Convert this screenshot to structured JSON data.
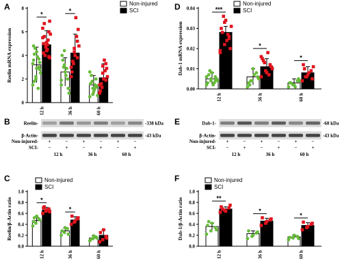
{
  "panel_letters": {
    "a": "A",
    "b": "B",
    "c": "C",
    "d": "D",
    "e": "E",
    "f": "F"
  },
  "legend": {
    "non_injured": "Non-injured",
    "sci": "SCI"
  },
  "colors": {
    "non_injured_fill": "#ffffff",
    "sci_fill": "#000000",
    "non_injured_point": "#66bb3a",
    "sci_point": "#e0141e",
    "blot_background": "#dcdcdc",
    "blot_band": "#333333"
  },
  "blots": {
    "b": {
      "rows": [
        {
          "label": "Reelin-",
          "kda": "-338 kDa",
          "band_intensity": [
            0.35,
            0.6,
            0.4,
            0.55,
            0.35,
            0.5
          ]
        },
        {
          "label": "β-Actin-",
          "kda": "-43 kDa",
          "band_intensity": [
            0.9,
            0.9,
            0.9,
            0.9,
            0.9,
            0.9
          ]
        }
      ],
      "ni_label": "Non-injured-",
      "sci_label": "SCI-",
      "ni_signs": [
        "+",
        "−",
        "+",
        "−",
        "+",
        "−"
      ],
      "sci_signs": [
        "−",
        "+",
        "−",
        "+",
        "−",
        "+"
      ],
      "times": [
        "12 h",
        "36 h",
        "60 h"
      ]
    },
    "e": {
      "rows": [
        {
          "label": "Dab-1-",
          "kda": "-60 kDa",
          "band_intensity": [
            0.55,
            0.8,
            0.55,
            0.75,
            0.5,
            0.7
          ]
        },
        {
          "label": "β-Actin-",
          "kda": "-43 kDa",
          "band_intensity": [
            0.9,
            0.9,
            0.9,
            0.9,
            0.9,
            0.9
          ]
        }
      ],
      "ni_label": "Non-injured-",
      "sci_label": "SCI-",
      "ni_signs": [
        "+",
        "−",
        "+",
        "−",
        "+",
        "−"
      ],
      "sci_signs": [
        "−",
        "+",
        "−",
        "+",
        "−",
        "+"
      ],
      "times": [
        "12 h",
        "36 h",
        "60 h"
      ]
    }
  },
  "chart_data": [
    {
      "panel": "A",
      "type": "bar",
      "ylabel": "Reelin mRNA expression",
      "categories": [
        "12 h",
        "36 h",
        "60 h"
      ],
      "ylim": [
        0,
        8
      ],
      "yticks": [
        0,
        2,
        4,
        6,
        8
      ],
      "series": [
        {
          "name": "Non-injured",
          "values": [
            3.2,
            2.6,
            1.5
          ],
          "errors": [
            1.5,
            1.2,
            0.8
          ]
        },
        {
          "name": "SCI",
          "values": [
            4.9,
            4.2,
            2.1
          ],
          "errors": [
            1.2,
            1.6,
            1.2
          ]
        }
      ],
      "points": [
        [
          [
            1.5,
            2.2,
            3.0,
            3.6,
            4.3,
            2.8,
            1.8,
            3.9,
            2.5,
            4.6,
            1.2,
            3.3,
            2.0,
            3.7,
            4.8,
            2.9,
            3.4,
            4.1
          ],
          [
            5.5,
            4.8,
            6.0,
            4.2,
            5.1,
            3.8,
            6.7,
            4.5,
            5.8,
            4.0,
            5.3,
            6.3,
            4.7,
            3.9,
            5.0,
            4.4,
            6.9,
            5.6,
            4.9
          ]
        ],
        [
          [
            1.5,
            3.2,
            2.0,
            4.0,
            2.6,
            1.2,
            3.6,
            2.3,
            0.8,
            3.0,
            2.9,
            1.9,
            4.4
          ],
          [
            3.0,
            4.6,
            5.2,
            2.6,
            4.0,
            6.2,
            3.5,
            7.2,
            4.8,
            3.3,
            5.6,
            2.2,
            4.3,
            3.8
          ]
        ],
        [
          [
            0.5,
            1.2,
            2.0,
            1.6,
            0.9,
            1.4,
            2.3,
            1.1,
            0.6,
            1.8,
            1.5,
            2.6,
            0.7,
            1.3
          ],
          [
            1.5,
            2.5,
            3.3,
            1.0,
            2.0,
            2.9,
            1.6,
            3.6,
            2.2,
            1.3,
            2.7,
            0.8,
            3.1,
            1.9
          ]
        ]
      ],
      "significance": [
        "*",
        "*",
        ""
      ]
    },
    {
      "panel": "C",
      "type": "bar",
      "ylabel": "Reelin/β-Actin ratio",
      "categories": [
        "12 h",
        "36 h",
        "60 h"
      ],
      "ylim": [
        0,
        1.0
      ],
      "yticks": [
        0.0,
        0.2,
        0.4,
        0.6,
        0.8,
        1.0
      ],
      "series": [
        {
          "name": "Non-injured",
          "values": [
            0.47,
            0.28,
            0.15
          ],
          "errors": [
            0.06,
            0.05,
            0.04
          ]
        },
        {
          "name": "SCI",
          "values": [
            0.66,
            0.48,
            0.2
          ],
          "errors": [
            0.05,
            0.06,
            0.1
          ]
        }
      ],
      "points": [
        [
          [
            0.37,
            0.42,
            0.5,
            0.45,
            0.55,
            0.48,
            0.52
          ],
          [
            0.6,
            0.64,
            0.68,
            0.7,
            0.66,
            0.63,
            0.72
          ]
        ],
        [
          [
            0.2,
            0.25,
            0.32,
            0.28,
            0.34,
            0.22
          ],
          [
            0.4,
            0.44,
            0.5,
            0.55,
            0.46,
            0.52
          ]
        ],
        [
          [
            0.1,
            0.14,
            0.17,
            0.12,
            0.19,
            0.15
          ],
          [
            0.08,
            0.12,
            0.18,
            0.25,
            0.3,
            0.15
          ]
        ]
      ],
      "significance": [
        "*",
        "*",
        ""
      ]
    },
    {
      "panel": "D",
      "type": "bar",
      "ylabel": "Dab-1 mRNA expression",
      "categories": [
        "12 h",
        "36 h",
        "60 h"
      ],
      "ylim": [
        0,
        0.04
      ],
      "yticks": [
        0.0,
        0.01,
        0.02,
        0.03,
        0.04
      ],
      "series": [
        {
          "name": "Non-injured",
          "values": [
            0.005,
            0.006,
            0.003
          ],
          "errors": [
            0.003,
            0.004,
            0.002
          ]
        },
        {
          "name": "SCI",
          "values": [
            0.028,
            0.011,
            0.008
          ],
          "errors": [
            0.003,
            0.004,
            0.003
          ]
        }
      ],
      "points": [
        [
          [
            0.002,
            0.004,
            0.006,
            0.003,
            0.008,
            0.005,
            0.007,
            0.002,
            0.004,
            0.009,
            0.003,
            0.006,
            0.005,
            0.004
          ],
          [
            0.018,
            0.022,
            0.026,
            0.03,
            0.034,
            0.02,
            0.028,
            0.024,
            0.031,
            0.036,
            0.027,
            0.019,
            0.033,
            0.025
          ]
        ],
        [
          [
            0.001,
            0.004,
            0.008,
            0.003,
            0.01,
            0.006,
            0.002,
            0.007,
            0.005,
            0.004
          ],
          [
            0.006,
            0.009,
            0.012,
            0.015,
            0.008,
            0.011,
            0.014,
            0.018,
            0.01,
            0.013,
            0.007,
            0.016
          ]
        ],
        [
          [
            0.001,
            0.002,
            0.004,
            0.003,
            0.002,
            0.005,
            0.003,
            0.001,
            0.004
          ],
          [
            0.004,
            0.006,
            0.009,
            0.012,
            0.007,
            0.005,
            0.01,
            0.008,
            0.011,
            0.006
          ]
        ]
      ],
      "significance": [
        "***",
        "*",
        "*"
      ]
    },
    {
      "panel": "F",
      "type": "bar",
      "ylabel": "Dab-1/β-Actin ratio",
      "categories": [
        "12 h",
        "36 h",
        "60 h"
      ],
      "ylim": [
        0,
        1.0
      ],
      "yticks": [
        0.0,
        0.2,
        0.4,
        0.6,
        0.8,
        1.0
      ],
      "series": [
        {
          "name": "Non-injured",
          "values": [
            0.36,
            0.23,
            0.17
          ],
          "errors": [
            0.06,
            0.05,
            0.03
          ]
        },
        {
          "name": "SCI",
          "values": [
            0.68,
            0.46,
            0.38
          ],
          "errors": [
            0.04,
            0.05,
            0.05
          ]
        }
      ],
      "points": [
        [
          [
            0.22,
            0.28,
            0.34,
            0.38,
            0.42,
            0.3,
            0.45
          ],
          [
            0.62,
            0.66,
            0.7,
            0.72,
            0.64,
            0.75,
            0.68
          ]
        ],
        [
          [
            0.14,
            0.18,
            0.24,
            0.28,
            0.2,
            0.26
          ],
          [
            0.38,
            0.42,
            0.48,
            0.52,
            0.45,
            0.5
          ]
        ],
        [
          [
            0.12,
            0.15,
            0.18,
            0.16,
            0.2,
            0.14
          ],
          [
            0.3,
            0.34,
            0.4,
            0.44,
            0.36,
            0.42
          ]
        ]
      ],
      "significance": [
        "**",
        "*",
        "*"
      ]
    }
  ]
}
